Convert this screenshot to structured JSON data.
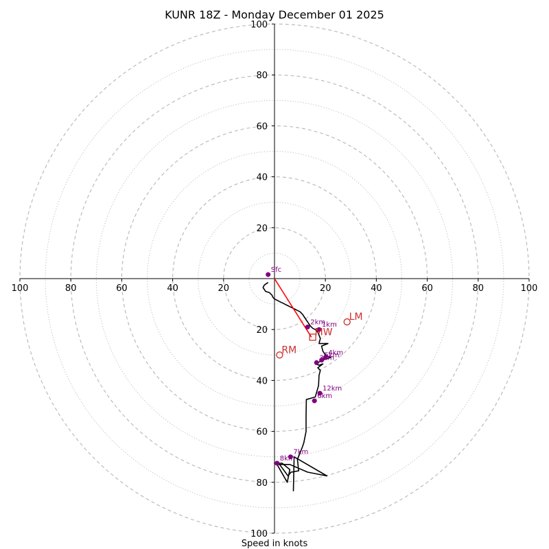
{
  "chart_data": {
    "type": "line",
    "title": "KUNR 18Z - Monday December 01 2025",
    "xlabel": "Speed in knots",
    "ylabel": "",
    "xlim": [
      -100,
      100
    ],
    "ylim": [
      -100,
      100
    ],
    "ring_major_step": 20,
    "ring_minor_step": 10,
    "tick_values": [
      20,
      40,
      60,
      80,
      100
    ],
    "x_tick_labels": [
      "100",
      "80",
      "60",
      "40",
      "20",
      "20",
      "40",
      "60",
      "80",
      "100"
    ],
    "y_tick_labels": [
      "100",
      "80",
      "60",
      "40",
      "20",
      "20",
      "40",
      "60",
      "80",
      "100"
    ],
    "series": [
      {
        "name": "hodograph",
        "color": "#000000",
        "u": [
          -2.5,
          -4,
          -4.5,
          -3.5,
          -2,
          -1,
          -0.5,
          0,
          1,
          2,
          3,
          4,
          5,
          6,
          7,
          8,
          9,
          10,
          11,
          12,
          13,
          14,
          15,
          16,
          17,
          18,
          17.5,
          21,
          18.5,
          19,
          20,
          22,
          19,
          16,
          17.5,
          19,
          17,
          18,
          17.5,
          17.3,
          16,
          12.5,
          12.5,
          12.4,
          12.4,
          11.5,
          11,
          9,
          9.5,
          6.5,
          5.3,
          2,
          1.5,
          1,
          0,
          3,
          6,
          5,
          1,
          6,
          13,
          20.6,
          7.7,
          7.4
        ],
        "v": [
          -1.5,
          -2.5,
          -3.5,
          -5,
          -5.5,
          -6.5,
          -7.5,
          -8,
          -8.5,
          -9,
          -9.5,
          -10,
          -10.5,
          -11,
          -11.5,
          -12,
          -12.5,
          -13,
          -14,
          -15.5,
          -17,
          -18.5,
          -19.5,
          -20,
          -21,
          -23.5,
          -25.5,
          -25.5,
          -26.5,
          -28.5,
          -30,
          -31,
          -32,
          -33.5,
          -34,
          -33.5,
          -35,
          -36,
          -38,
          -42,
          -46.5,
          -47.5,
          -47.5,
          -54,
          -60,
          -64.5,
          -66,
          -71,
          -75.5,
          -76,
          -77.5,
          -73,
          -72.5,
          -72,
          -72.5,
          -72.5,
          -75,
          -80,
          -73,
          -73,
          -76,
          -77.5,
          -70,
          -83.5
        ]
      },
      {
        "name": "storm-motion-vector",
        "color": "#ff0000",
        "u": [
          0,
          14.5
        ],
        "v": [
          0,
          -23
        ]
      }
    ],
    "height_markers": [
      {
        "label": "Sfc",
        "u": -2.5,
        "v": 1.6
      },
      {
        "label": "1km",
        "u": 17.5,
        "v": -20
      },
      {
        "label": "2km",
        "u": 13,
        "v": -19
      },
      {
        "label": "3km",
        "u": 16.5,
        "v": -33
      },
      {
        "label": "4km",
        "u": 20,
        "v": -31
      },
      {
        "label": "5km",
        "u": 18.5,
        "v": -32
      },
      {
        "label": "6km",
        "u": 15.7,
        "v": -48
      },
      {
        "label": "7km",
        "u": 6.3,
        "v": -70
      },
      {
        "label": "8km",
        "u": 1,
        "v": -72.5
      },
      {
        "label": "12km",
        "u": 17.8,
        "v": -45
      }
    ],
    "storm_motion_points": [
      {
        "label": "LM",
        "u": 28.5,
        "v": -17,
        "marker": "circle"
      },
      {
        "label": "RM",
        "u": 2,
        "v": -30,
        "marker": "circle"
      },
      {
        "label": "MW",
        "u": 15,
        "v": -23,
        "marker": "square"
      }
    ],
    "colors": {
      "line": "#000000",
      "marker": "#800080",
      "storm": "#cd2c2c",
      "vector": "#ff0000",
      "ring": "#b5b5b5"
    }
  }
}
